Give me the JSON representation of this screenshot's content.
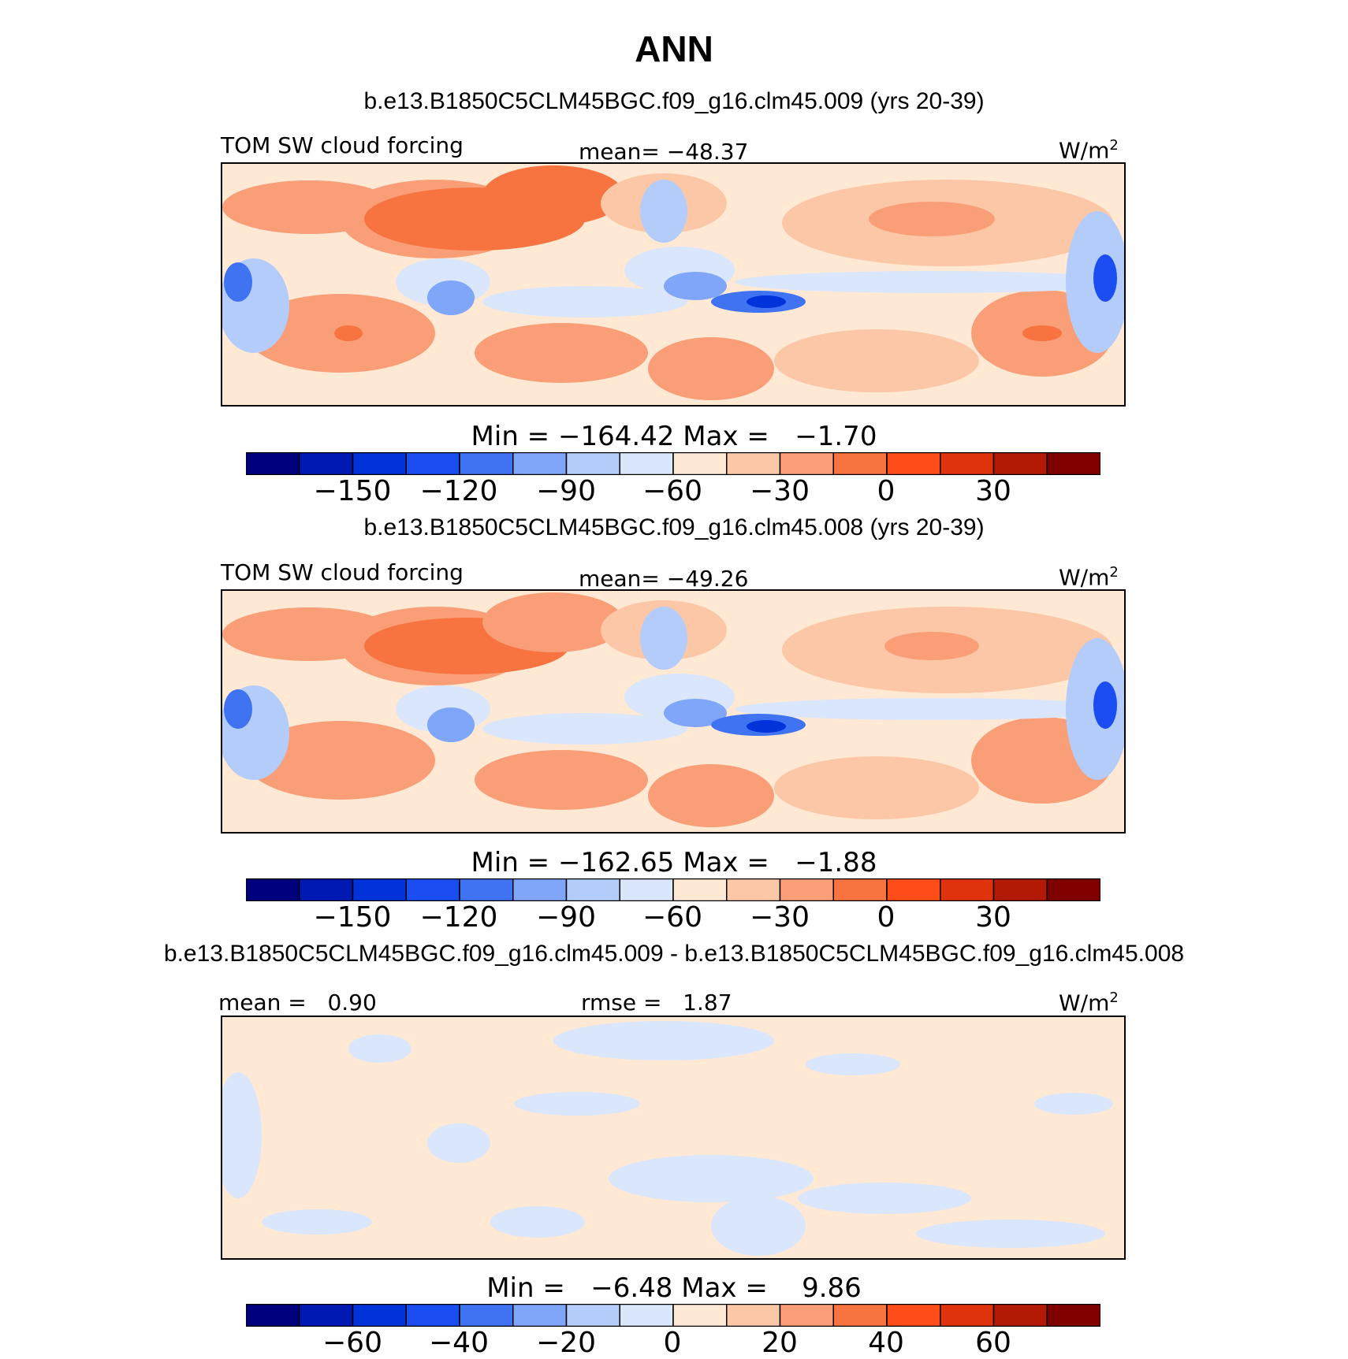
{
  "title": "ANN",
  "colorbar_colors": [
    "#00007f",
    "#0019b2",
    "#0033d9",
    "#1a4df2",
    "#4073f2",
    "#80a6fa",
    "#b3ccfa",
    "#d9e6fc",
    "#ffe9d4",
    "#fcc7a6",
    "#fa9e78",
    "#f77340",
    "#ff4d1a",
    "#e0330d",
    "#b31a05",
    "#800000"
  ],
  "panels": [
    {
      "case": "b.e13.B1850C5CLM45BGC.f09_g16.clm45.009 (yrs 20-39)",
      "left_label": "TOM SW cloud forcing",
      "center_label": "mean= −48.37",
      "units": "W/m",
      "units_sup": "2",
      "minmax": "Min = −164.42 Max =   −1.70",
      "ticks": [
        "−150",
        "−120",
        "−90",
        "−60",
        "−30",
        "0",
        "30"
      ]
    },
    {
      "case": "b.e13.B1850C5CLM45BGC.f09_g16.clm45.008 (yrs 20-39)",
      "left_label": "TOM SW cloud forcing",
      "center_label": "mean= −49.26",
      "units": "W/m",
      "units_sup": "2",
      "minmax": "Min = −162.65 Max =   −1.88",
      "ticks": [
        "−150",
        "−120",
        "−90",
        "−60",
        "−30",
        "0",
        "30"
      ]
    },
    {
      "case": "b.e13.B1850C5CLM45BGC.f09_g16.clm45.009 - b.e13.B1850C5CLM45BGC.f09_g16.clm45.008",
      "left_label": "mean =   0.90",
      "center_label": "rmse =   1.87",
      "units": "W/m",
      "units_sup": "2",
      "minmax": "Min =   −6.48 Max =    9.86",
      "ticks": [
        "−60",
        "−40",
        "−20",
        "0",
        "20",
        "40",
        "60"
      ]
    }
  ]
}
